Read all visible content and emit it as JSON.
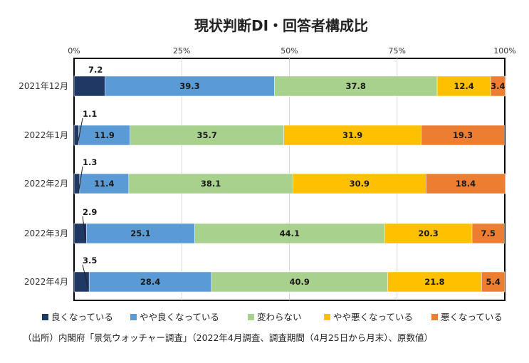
{
  "chart_data": {
    "type": "bar",
    "orientation": "horizontal",
    "stacked": "percent",
    "title": "現状判断DI・回答者構成比",
    "x_ticks": [
      "0%",
      "25%",
      "50%",
      "75%",
      "100%"
    ],
    "xlim": [
      0,
      100
    ],
    "grid": true,
    "legend_position": "bottom",
    "categories": [
      "2021年12月",
      "2022年1月",
      "2022年2月",
      "2022年3月",
      "2022年4月"
    ],
    "series": [
      {
        "name": "良くなっている",
        "color": "#1f3864",
        "values": [
          7.2,
          1.1,
          1.3,
          2.9,
          3.5
        ]
      },
      {
        "name": "やや良くなっている",
        "color": "#5b9bd5",
        "values": [
          39.3,
          11.9,
          11.4,
          25.1,
          28.4
        ]
      },
      {
        "name": "変わらない",
        "color": "#a9d18e",
        "values": [
          37.8,
          35.7,
          38.1,
          44.1,
          40.9
        ]
      },
      {
        "name": "やや悪くなっている",
        "color": "#ffc000",
        "values": [
          12.4,
          31.9,
          30.9,
          20.3,
          21.8
        ]
      },
      {
        "name": "悪くなっている",
        "color": "#ed7d31",
        "values": [
          3.4,
          19.3,
          18.4,
          7.5,
          5.4
        ]
      }
    ],
    "source": "（出所）内閣府「景気ウォッチャー調査」（2022年4月調査、調査期間（4月25日から月末）、原数値）"
  }
}
